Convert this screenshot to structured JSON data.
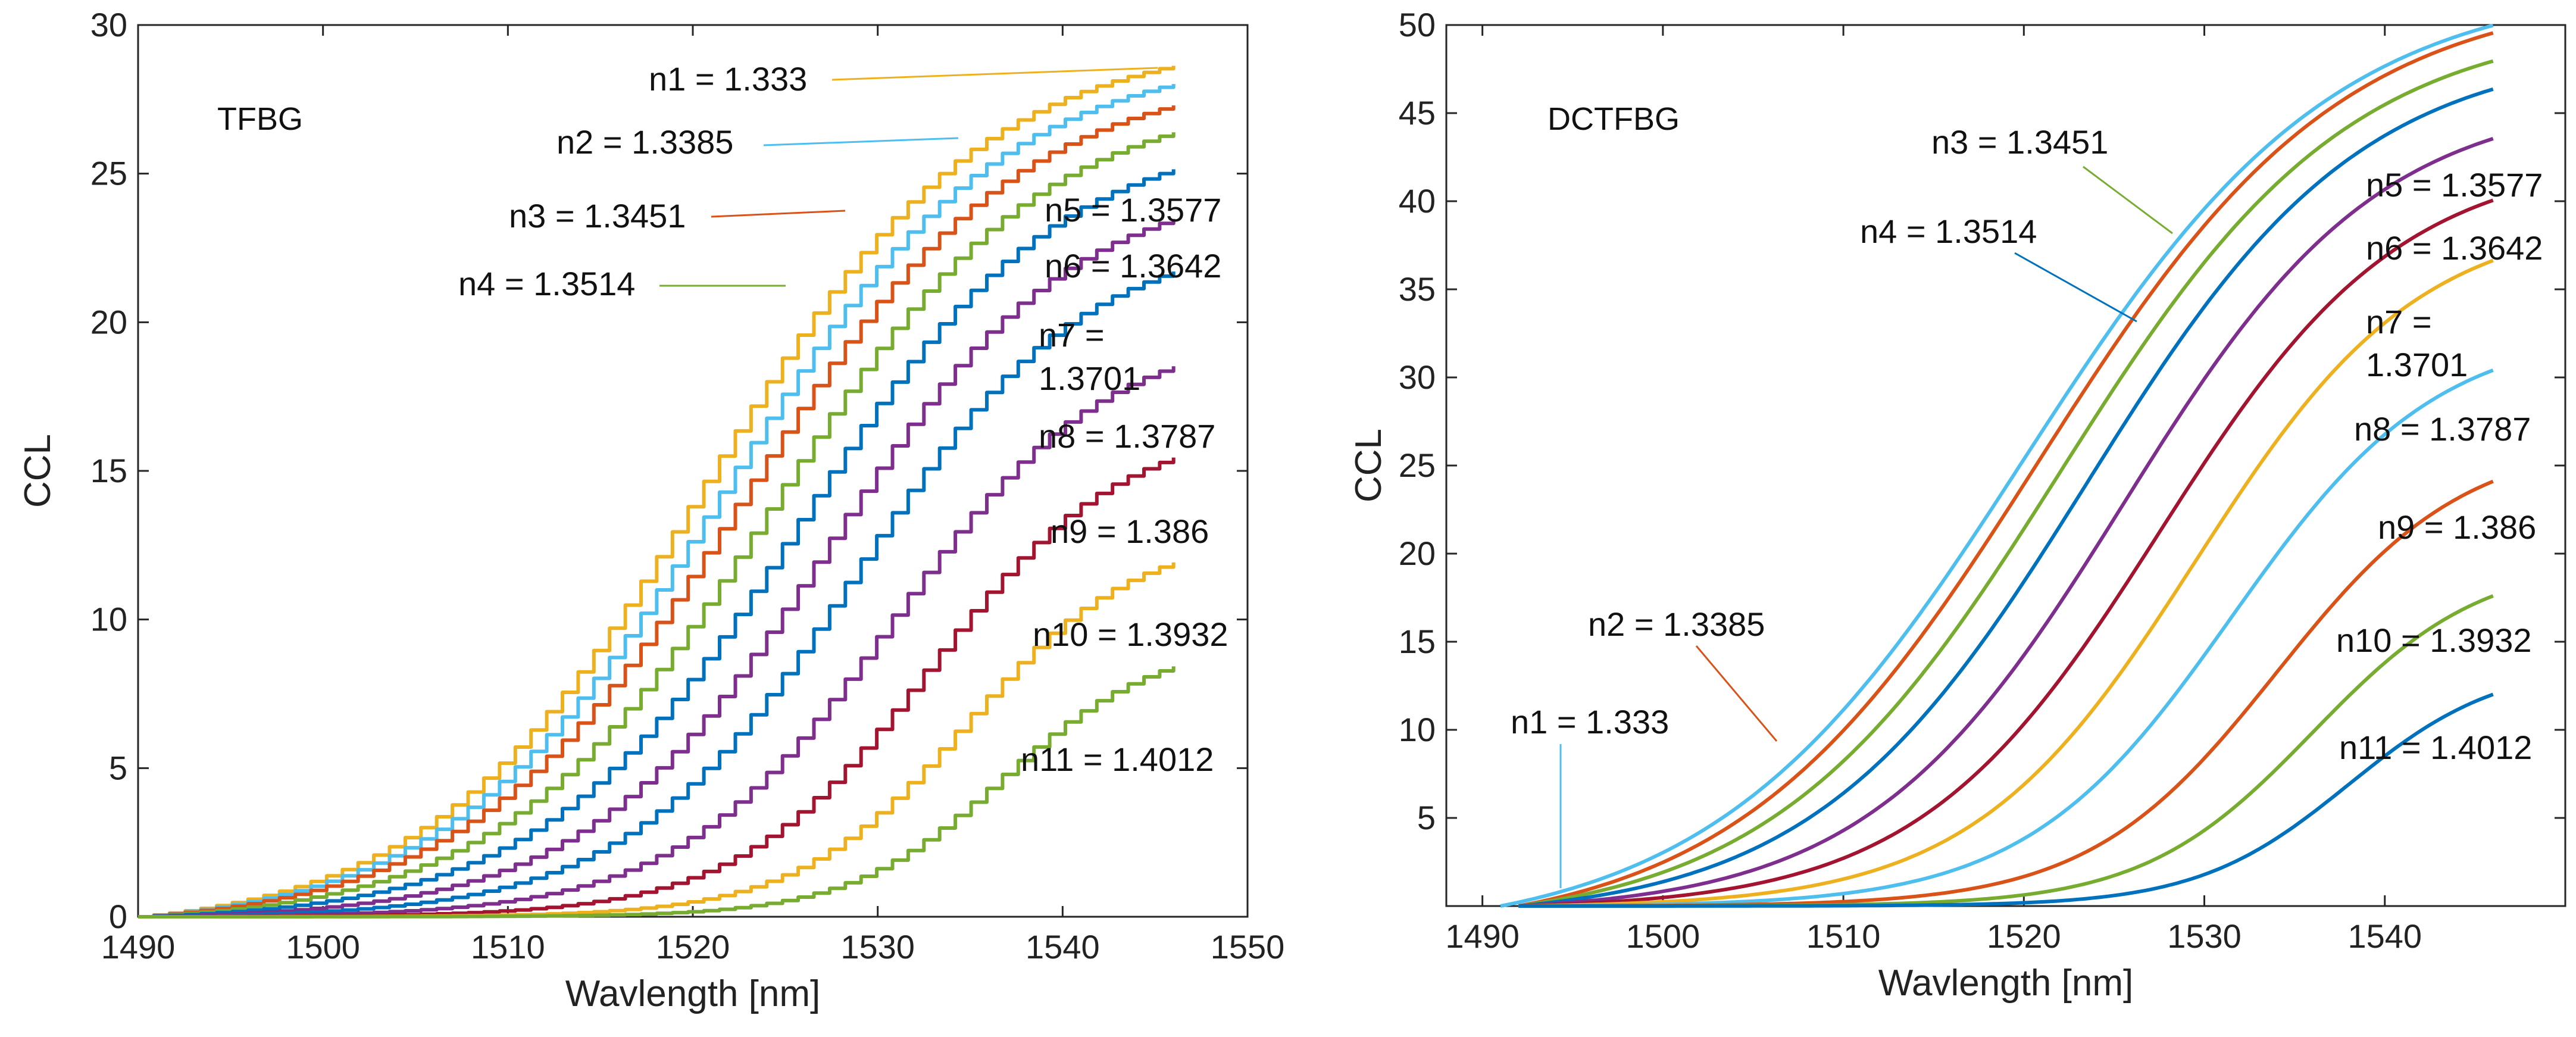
{
  "chart_data": [
    {
      "type": "line",
      "title": "TFBG",
      "xlabel": "Wavlength [nm]",
      "ylabel": "CCL",
      "xlim": [
        1490,
        1550
      ],
      "ylim": [
        0,
        30
      ],
      "xticks": [
        "1490",
        "1500",
        "1510",
        "1520",
        "1530",
        "1540",
        "1550"
      ],
      "yticks": [
        "0",
        "5",
        "10",
        "15",
        "20",
        "25",
        "30"
      ],
      "stepped": true,
      "series": [
        {
          "name": "n1 = 1.333",
          "color": "#EDB120",
          "start": 1490,
          "mid": 1520.5,
          "width": 7.5,
          "max": 29.6,
          "end": 1546
        },
        {
          "name": "n2 = 1.3385",
          "color": "#4DBEEE",
          "start": 1490,
          "mid": 1521.5,
          "width": 7.5,
          "max": 29.1,
          "end": 1546
        },
        {
          "name": "n3 = 1.3451",
          "color": "#D95319",
          "start": 1490,
          "mid": 1522.5,
          "width": 7.5,
          "max": 28.5,
          "end": 1546
        },
        {
          "name": "n4 = 1.3514",
          "color": "#77AC30",
          "start": 1490,
          "mid": 1524.0,
          "width": 7.3,
          "max": 27.7,
          "end": 1546
        },
        {
          "name": "n5 = 1.3577",
          "color": "#0072BD",
          "start": 1490,
          "mid": 1525.5,
          "width": 7.0,
          "max": 26.5,
          "end": 1546
        },
        {
          "name": "n6 = 1.3642",
          "color": "#7E2F8E",
          "start": 1490,
          "mid": 1527.0,
          "width": 6.6,
          "max": 24.8,
          "end": 1546
        },
        {
          "name": "n7 = 1.3701",
          "color": "#0072BD",
          "start": 1490,
          "mid": 1528.5,
          "width": 6.2,
          "max": 23.0,
          "end": 1546
        },
        {
          "name": "n8 = 1.3787",
          "color": "#7E2F8E",
          "start": 1490,
          "mid": 1530.5,
          "width": 5.8,
          "max": 19.8,
          "end": 1546
        },
        {
          "name": "n9 = 1.386",
          "color": "#A2142F",
          "start": 1490,
          "mid": 1532.5,
          "width": 5.2,
          "max": 16.6,
          "end": 1546
        },
        {
          "name": "n10 = 1.3932",
          "color": "#EDB120",
          "start": 1490,
          "mid": 1534.5,
          "width": 4.6,
          "max": 12.9,
          "end": 1546
        },
        {
          "name": "n11 = 1.4012",
          "color": "#77AC30",
          "start": 1490,
          "mid": 1536.5,
          "width": 4.2,
          "max": 9.3,
          "end": 1546
        }
      ]
    },
    {
      "type": "line",
      "title": "DCTFBG",
      "xlabel": "Wavlength [nm]",
      "ylabel": "CCL",
      "xlim": [
        1488,
        1550
      ],
      "ylim": [
        0,
        50
      ],
      "xticks": [
        "1490",
        "1500",
        "1510",
        "1520",
        "1530",
        "1540"
      ],
      "yticks": [
        "5",
        "10",
        "15",
        "20",
        "25",
        "30",
        "35",
        "40",
        "45",
        "50"
      ],
      "stepped": false,
      "series": [
        {
          "name": "n1 = 1.333",
          "color": "#4DBEEE",
          "start": 1491,
          "mid": 1520.0,
          "width": 8.6,
          "max": 52.5,
          "end": 1546
        },
        {
          "name": "n2 = 1.3385",
          "color": "#D95319",
          "start": 1492,
          "mid": 1520.8,
          "width": 8.4,
          "max": 52.1,
          "end": 1546
        },
        {
          "name": "n3 = 1.3451",
          "color": "#77AC30",
          "start": 1492,
          "mid": 1522.0,
          "width": 8.0,
          "max": 50.4,
          "end": 1546
        },
        {
          "name": "n4 = 1.3514",
          "color": "#0072BD",
          "start": 1492,
          "mid": 1523.5,
          "width": 7.6,
          "max": 48.8,
          "end": 1546
        },
        {
          "name": "n5 = 1.3577",
          "color": "#7E2F8E",
          "start": 1492,
          "mid": 1525.5,
          "width": 7.1,
          "max": 46.0,
          "end": 1546
        },
        {
          "name": "n6 = 1.3642",
          "color": "#A2142F",
          "start": 1492,
          "mid": 1527.5,
          "width": 6.7,
          "max": 42.6,
          "end": 1546
        },
        {
          "name": "n7 = 1.3701",
          "color": "#EDB120",
          "start": 1492,
          "mid": 1529.5,
          "width": 6.2,
          "max": 39.2,
          "end": 1546
        },
        {
          "name": "n8 = 1.3787",
          "color": "#4DBEEE",
          "start": 1492,
          "mid": 1531.5,
          "width": 5.7,
          "max": 32.8,
          "end": 1546
        },
        {
          "name": "n9 = 1.386",
          "color": "#D95319",
          "start": 1492,
          "mid": 1534.0,
          "width": 5.2,
          "max": 26.5,
          "end": 1546
        },
        {
          "name": "n10 = 1.3932",
          "color": "#77AC30",
          "start": 1492,
          "mid": 1536.0,
          "width": 4.7,
          "max": 19.7,
          "end": 1546
        },
        {
          "name": "n11 = 1.4012",
          "color": "#0072BD",
          "start": 1492,
          "mid": 1538.0,
          "width": 4.2,
          "max": 13.8,
          "end": 1546
        }
      ]
    }
  ]
}
